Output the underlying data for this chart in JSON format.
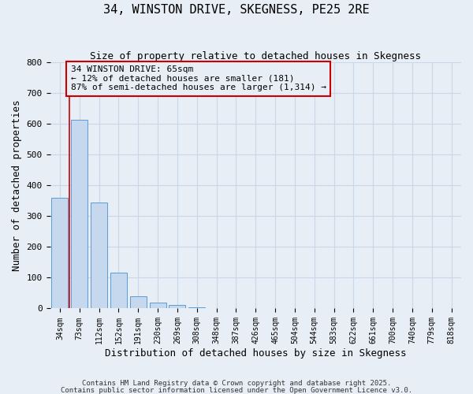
{
  "title": "34, WINSTON DRIVE, SKEGNESS, PE25 2RE",
  "subtitle": "Size of property relative to detached houses in Skegness",
  "xlabel": "Distribution of detached houses by size in Skegness",
  "ylabel": "Number of detached properties",
  "bar_labels": [
    "34sqm",
    "73sqm",
    "112sqm",
    "152sqm",
    "191sqm",
    "230sqm",
    "269sqm",
    "308sqm",
    "348sqm",
    "387sqm",
    "426sqm",
    "465sqm",
    "504sqm",
    "544sqm",
    "583sqm",
    "622sqm",
    "661sqm",
    "700sqm",
    "740sqm",
    "779sqm",
    "818sqm"
  ],
  "bar_values": [
    360,
    614,
    345,
    116,
    40,
    18,
    12,
    4,
    0,
    0,
    0,
    2,
    0,
    0,
    0,
    0,
    0,
    0,
    0,
    0,
    0
  ],
  "bar_color": "#c5d8ee",
  "bar_edge_color": "#5b9bd5",
  "grid_color": "#c8d8e8",
  "background_color": "#e8eef5",
  "vline_color": "#cc0000",
  "vline_x": 0.09,
  "annotation_title": "34 WINSTON DRIVE: 65sqm",
  "annotation_line1": "← 12% of detached houses are smaller (181)",
  "annotation_line2": "87% of semi-detached houses are larger (1,314) →",
  "annotation_box_color": "#cc0000",
  "ylim": [
    0,
    800
  ],
  "yticks": [
    0,
    100,
    200,
    300,
    400,
    500,
    600,
    700,
    800
  ],
  "footer1": "Contains HM Land Registry data © Crown copyright and database right 2025.",
  "footer2": "Contains public sector information licensed under the Open Government Licence v3.0."
}
